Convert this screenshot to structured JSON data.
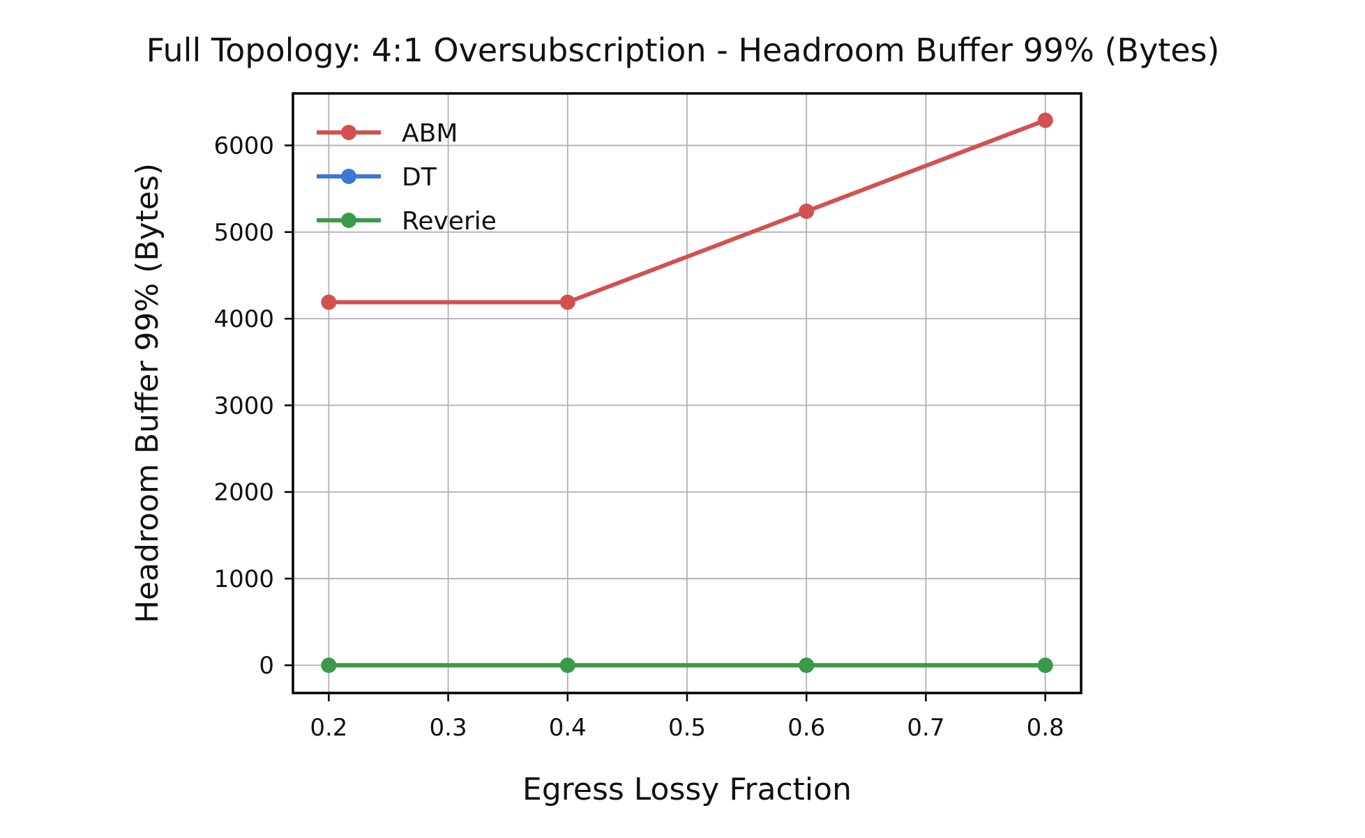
{
  "chart_data": {
    "type": "line",
    "title": "Full Topology: 4:1 Oversubscription - Headroom Buffer 99% (Bytes)",
    "xlabel": "Egress Lossy Fraction",
    "ylabel": "Headroom Buffer 99% (Bytes)",
    "x": [
      0.2,
      0.4,
      0.6,
      0.8
    ],
    "xlim": [
      0.17,
      0.83
    ],
    "ylim": [
      -320,
      6600
    ],
    "xticks": [
      0.2,
      0.3,
      0.4,
      0.5,
      0.6,
      0.7,
      0.8
    ],
    "xtick_labels": [
      "0.2",
      "0.3",
      "0.4",
      "0.5",
      "0.6",
      "0.7",
      "0.8"
    ],
    "yticks": [
      0,
      1000,
      2000,
      3000,
      4000,
      5000,
      6000
    ],
    "ytick_labels": [
      "0",
      "1000",
      "2000",
      "3000",
      "4000",
      "5000",
      "6000"
    ],
    "grid": true,
    "legend_position": "upper-left",
    "series": [
      {
        "name": "ABM",
        "color": "#d45050",
        "values": [
          4190,
          4190,
          5240,
          6290
        ]
      },
      {
        "name": "DT",
        "color": "#3a78d4",
        "values": [
          0,
          0,
          0,
          0
        ]
      },
      {
        "name": "Reverie",
        "color": "#3a9a48",
        "values": [
          0,
          0,
          0,
          0
        ]
      }
    ]
  }
}
